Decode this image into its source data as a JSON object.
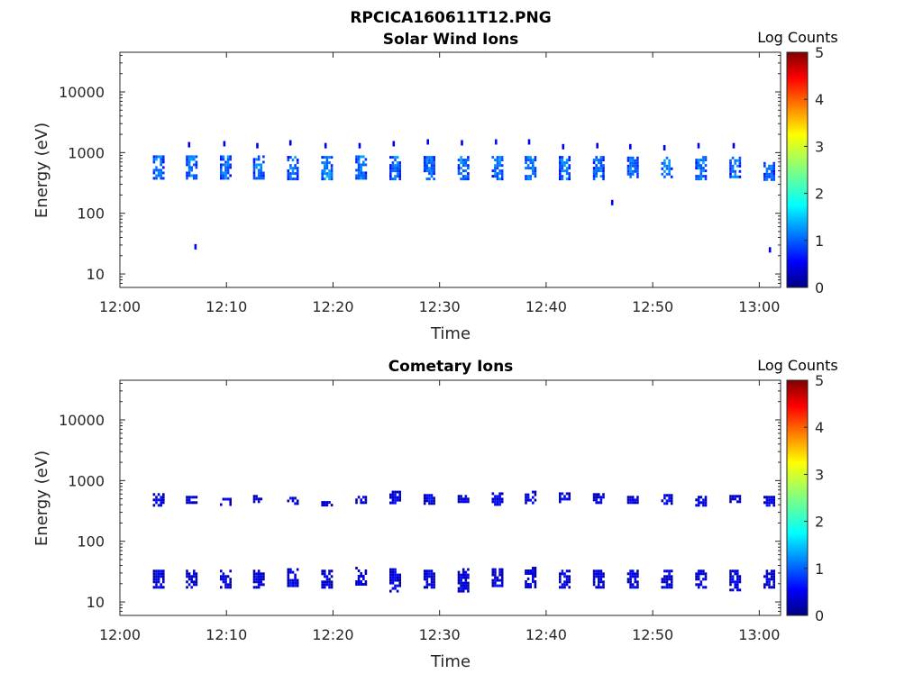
{
  "figure": {
    "title": "RPCICA160611T12.PNG"
  },
  "colors": {
    "background": "#ffffff",
    "axis": "#262626",
    "colormap": [
      "#000080",
      "#0000ff",
      "#0080ff",
      "#00ffff",
      "#80ff80",
      "#ffff00",
      "#ff8000",
      "#ff0000",
      "#800000"
    ]
  },
  "chart_data": [
    {
      "type": "heatmap",
      "title": "Solar Wind Ions",
      "xlabel": "Time",
      "ylabel": "Energy (eV)",
      "y_scale": "log",
      "ylim": [
        6,
        45000
      ],
      "xlim": [
        "12:00",
        "13:02"
      ],
      "x_ticks": [
        "12:00",
        "12:10",
        "12:20",
        "12:30",
        "12:40",
        "12:50",
        "13:00"
      ],
      "y_ticks": [
        "10",
        "100",
        "1000",
        "10000"
      ],
      "colorbar": {
        "label": "Log Counts",
        "range": [
          0,
          5
        ],
        "ticks": [
          "0",
          "1",
          "2",
          "3",
          "4",
          "5"
        ]
      },
      "bursts": [
        {
          "time": "12:03.6",
          "e_low": 380,
          "e_high": 900,
          "level": 1.2
        },
        {
          "time": "12:06.7",
          "e_low": 380,
          "e_high": 900,
          "level": 1.2
        },
        {
          "time": "12:09.9",
          "e_low": 380,
          "e_high": 900,
          "level": 1.2
        },
        {
          "time": "12:13.0",
          "e_low": 380,
          "e_high": 900,
          "level": 1.2
        },
        {
          "time": "12:16.2",
          "e_low": 380,
          "e_high": 880,
          "level": 1.2
        },
        {
          "time": "12:19.4",
          "e_low": 360,
          "e_high": 880,
          "level": 1.3
        },
        {
          "time": "12:22.6",
          "e_low": 370,
          "e_high": 900,
          "level": 1.2
        },
        {
          "time": "12:25.8",
          "e_low": 380,
          "e_high": 880,
          "level": 1.2
        },
        {
          "time": "12:29.0",
          "e_low": 380,
          "e_high": 880,
          "level": 1.2
        },
        {
          "time": "12:32.2",
          "e_low": 380,
          "e_high": 880,
          "level": 1.2
        },
        {
          "time": "12:35.4",
          "e_low": 380,
          "e_high": 880,
          "level": 1.2
        },
        {
          "time": "12:38.5",
          "e_low": 380,
          "e_high": 880,
          "level": 1.2
        },
        {
          "time": "12:41.7",
          "e_low": 380,
          "e_high": 880,
          "level": 1.2
        },
        {
          "time": "12:44.9",
          "e_low": 380,
          "e_high": 880,
          "level": 1.2
        },
        {
          "time": "12:48.1",
          "e_low": 380,
          "e_high": 860,
          "level": 1.2
        },
        {
          "time": "12:51.3",
          "e_low": 380,
          "e_high": 860,
          "level": 1.2
        },
        {
          "time": "12:54.5",
          "e_low": 380,
          "e_high": 880,
          "level": 1.2
        },
        {
          "time": "12:57.7",
          "e_low": 380,
          "e_high": 860,
          "level": 1.2
        },
        {
          "time": "13:00.9",
          "e_low": 370,
          "e_high": 700,
          "level": 1.1
        }
      ],
      "sparse": [
        {
          "time": "12:06.5",
          "energy": 1350,
          "level": 0.5
        },
        {
          "time": "12:09.8",
          "energy": 1400,
          "level": 0.5
        },
        {
          "time": "12:12.9",
          "energy": 1300,
          "level": 0.5
        },
        {
          "time": "12:16.0",
          "energy": 1450,
          "level": 0.5
        },
        {
          "time": "12:19.3",
          "energy": 1300,
          "level": 0.5
        },
        {
          "time": "12:22.5",
          "energy": 1300,
          "level": 0.5
        },
        {
          "time": "12:25.7",
          "energy": 1400,
          "level": 0.5
        },
        {
          "time": "12:28.9",
          "energy": 1500,
          "level": 0.5
        },
        {
          "time": "12:32.1",
          "energy": 1450,
          "level": 0.5
        },
        {
          "time": "12:35.3",
          "energy": 1500,
          "level": 0.7
        },
        {
          "time": "12:38.4",
          "energy": 1500,
          "level": 0.5
        },
        {
          "time": "12:41.6",
          "energy": 1250,
          "level": 0.5
        },
        {
          "time": "12:44.8",
          "energy": 1300,
          "level": 0.5
        },
        {
          "time": "12:47.9",
          "energy": 1250,
          "level": 0.5
        },
        {
          "time": "12:51.1",
          "energy": 1200,
          "level": 0.5
        },
        {
          "time": "12:54.3",
          "energy": 1300,
          "level": 0.5
        },
        {
          "time": "12:57.6",
          "energy": 1300,
          "level": 0.5
        },
        {
          "time": "12:07.1",
          "energy": 28,
          "level": 0.6
        },
        {
          "time": "12:46.2",
          "energy": 150,
          "level": 0.5
        },
        {
          "time": "13:01.0",
          "energy": 25,
          "level": 0.5
        }
      ]
    },
    {
      "type": "heatmap",
      "title": "Cometary Ions",
      "xlabel": "Time",
      "ylabel": "Energy (eV)",
      "y_scale": "log",
      "ylim": [
        6,
        45000
      ],
      "xlim": [
        "12:00",
        "13:02"
      ],
      "x_ticks": [
        "12:00",
        "12:10",
        "12:20",
        "12:30",
        "12:40",
        "12:50",
        "13:00"
      ],
      "y_ticks": [
        "10",
        "100",
        "1000",
        "10000"
      ],
      "colorbar": {
        "label": "Log Counts",
        "range": [
          0,
          5
        ],
        "ticks": [
          "0",
          "1",
          "2",
          "3",
          "4",
          "5"
        ]
      },
      "bursts": [
        {
          "time": "12:03.6",
          "e_low": 18,
          "e_high": 34,
          "level": 0.5
        },
        {
          "time": "12:06.7",
          "e_low": 17,
          "e_high": 34,
          "level": 0.5
        },
        {
          "time": "12:09.9",
          "e_low": 18,
          "e_high": 34,
          "level": 0.5
        },
        {
          "time": "12:13.0",
          "e_low": 18,
          "e_high": 34,
          "level": 0.5
        },
        {
          "time": "12:16.2",
          "e_low": 18,
          "e_high": 36,
          "level": 0.5
        },
        {
          "time": "12:19.4",
          "e_low": 18,
          "e_high": 34,
          "level": 0.5
        },
        {
          "time": "12:22.6",
          "e_low": 18,
          "e_high": 38,
          "level": 0.5
        },
        {
          "time": "12:25.8",
          "e_low": 15,
          "e_high": 36,
          "level": 0.5
        },
        {
          "time": "12:29.0",
          "e_low": 18,
          "e_high": 34,
          "level": 0.5
        },
        {
          "time": "12:32.2",
          "e_low": 15,
          "e_high": 36,
          "level": 0.5
        },
        {
          "time": "12:35.4",
          "e_low": 18,
          "e_high": 36,
          "level": 0.5
        },
        {
          "time": "12:38.5",
          "e_low": 18,
          "e_high": 38,
          "level": 0.5
        },
        {
          "time": "12:41.7",
          "e_low": 18,
          "e_high": 34,
          "level": 0.5
        },
        {
          "time": "12:44.9",
          "e_low": 18,
          "e_high": 34,
          "level": 0.5
        },
        {
          "time": "12:48.1",
          "e_low": 18,
          "e_high": 34,
          "level": 0.5
        },
        {
          "time": "12:51.3",
          "e_low": 18,
          "e_high": 34,
          "level": 0.5
        },
        {
          "time": "12:54.5",
          "e_low": 18,
          "e_high": 34,
          "level": 0.5
        },
        {
          "time": "12:57.7",
          "e_low": 15,
          "e_high": 34,
          "level": 0.5
        },
        {
          "time": "13:00.9",
          "e_low": 18,
          "e_high": 34,
          "level": 0.5
        },
        {
          "time": "12:03.6",
          "e_low": 400,
          "e_high": 620,
          "level": 0.5
        },
        {
          "time": "12:06.7",
          "e_low": 420,
          "e_high": 560,
          "level": 0.5
        },
        {
          "time": "12:09.9",
          "e_low": 410,
          "e_high": 520,
          "level": 0.5
        },
        {
          "time": "12:13.0",
          "e_low": 430,
          "e_high": 580,
          "level": 0.5
        },
        {
          "time": "12:16.2",
          "e_low": 400,
          "e_high": 540,
          "level": 0.5
        },
        {
          "time": "12:19.4",
          "e_low": 400,
          "e_high": 460,
          "level": 0.5
        },
        {
          "time": "12:22.6",
          "e_low": 420,
          "e_high": 560,
          "level": 0.5
        },
        {
          "time": "12:25.8",
          "e_low": 420,
          "e_high": 680,
          "level": 0.5
        },
        {
          "time": "12:29.0",
          "e_low": 430,
          "e_high": 600,
          "level": 0.5
        },
        {
          "time": "12:32.2",
          "e_low": 450,
          "e_high": 580,
          "level": 0.5
        },
        {
          "time": "12:35.4",
          "e_low": 420,
          "e_high": 640,
          "level": 0.5
        },
        {
          "time": "12:38.5",
          "e_low": 430,
          "e_high": 680,
          "level": 0.5
        },
        {
          "time": "12:41.7",
          "e_low": 430,
          "e_high": 640,
          "level": 0.5
        },
        {
          "time": "12:44.9",
          "e_low": 420,
          "e_high": 620,
          "level": 0.5
        },
        {
          "time": "12:48.1",
          "e_low": 430,
          "e_high": 560,
          "level": 0.5
        },
        {
          "time": "12:51.3",
          "e_low": 440,
          "e_high": 600,
          "level": 0.5
        },
        {
          "time": "12:54.5",
          "e_low": 380,
          "e_high": 560,
          "level": 0.5
        },
        {
          "time": "12:57.7",
          "e_low": 430,
          "e_high": 580,
          "level": 0.5
        },
        {
          "time": "13:00.9",
          "e_low": 380,
          "e_high": 560,
          "level": 0.5
        }
      ],
      "sparse": []
    }
  ]
}
